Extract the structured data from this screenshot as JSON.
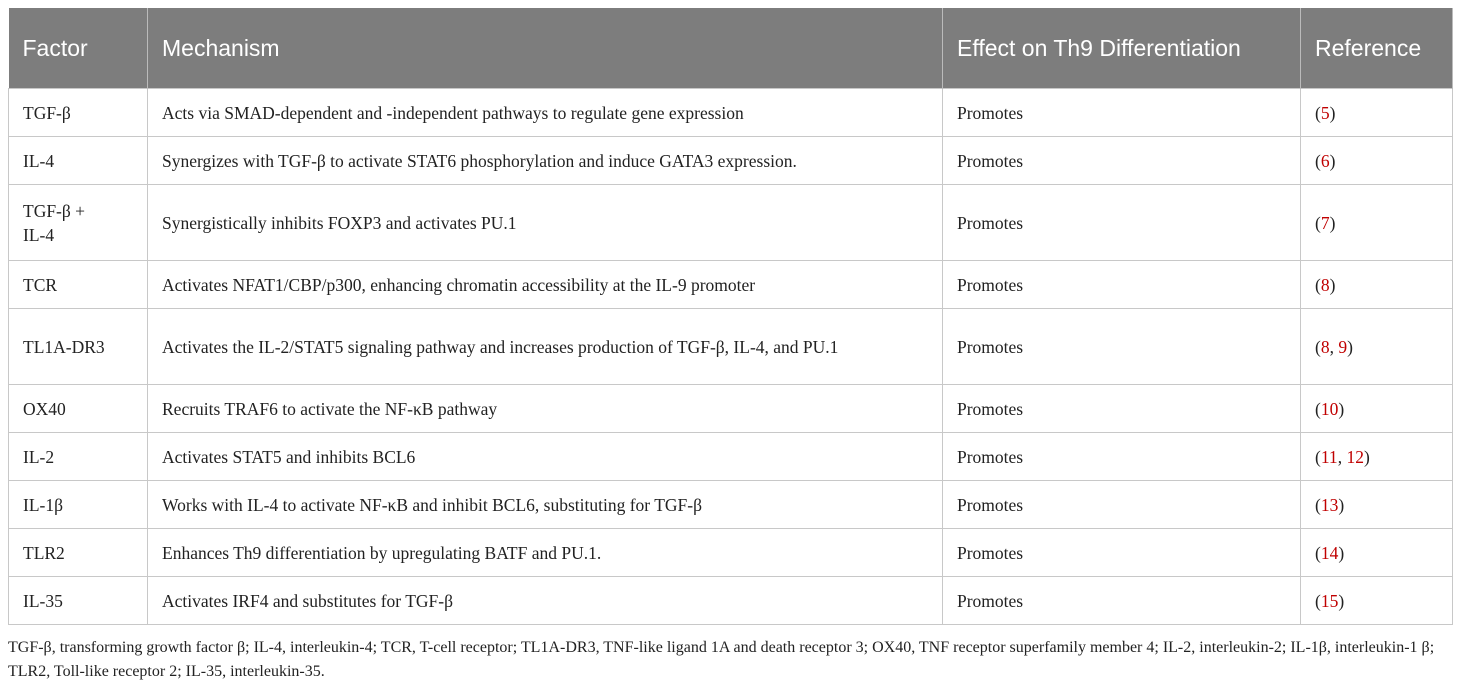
{
  "table": {
    "header": [
      "Factor",
      "Mechanism",
      "Effect on Th9 Differentiation",
      "Reference"
    ],
    "rows": [
      [
        "TGF-β",
        "Acts via SMAD-dependent and -independent pathways to regulate gene expression",
        "Promotes",
        "(5)"
      ],
      [
        "IL-4",
        "Synergizes with TGF-β to activate STAT6 phosphorylation and induce GATA3 expression.",
        "Promotes",
        "(6)"
      ],
      [
        "TGF-β + IL-4",
        "Synergistically inhibits FOXP3 and activates PU.1",
        "Promotes",
        "(7)"
      ],
      [
        "TCR",
        "Activates NFAT1/CBP/p300, enhancing chromatin accessibility at the IL-9 promoter",
        "Promotes",
        "(8)"
      ],
      [
        "TL1A-DR3",
        "Activates the IL-2/STAT5 signaling pathway and increases production of TGF-β, IL-4, and PU.1",
        "Promotes",
        "(8, 9)"
      ],
      [
        "OX40",
        "Recruits TRAF6 to activate the NF-κB pathway",
        "Promotes",
        "(10)"
      ],
      [
        "IL-2",
        "Activates STAT5 and inhibits BCL6",
        "Promotes",
        "(11, 12)"
      ],
      [
        "IL-1β",
        "Works with IL-4 to activate NF-κB and inhibit BCL6, substituting for TGF-β",
        "Promotes",
        "(13)"
      ],
      [
        "TLR2",
        "Enhances Th9 differentiation by upregulating BATF and PU.1.",
        "Promotes",
        "(14)"
      ],
      [
        "IL-35",
        "Activates IRF4 and substitutes for TGF-β",
        "Promotes",
        "(15)"
      ]
    ],
    "footnote": "TGF-β, transforming growth factor β; IL-4, interleukin-4; TCR, T-cell receptor; TL1A-DR3, TNF-like ligand 1A and death receptor 3; OX40, TNF receptor superfamily member 4; IL-2, interleukin-2; IL-1β, interleukin-1 β; TLR2, Toll-like receptor 2; IL-35, interleukin-35."
  }
}
